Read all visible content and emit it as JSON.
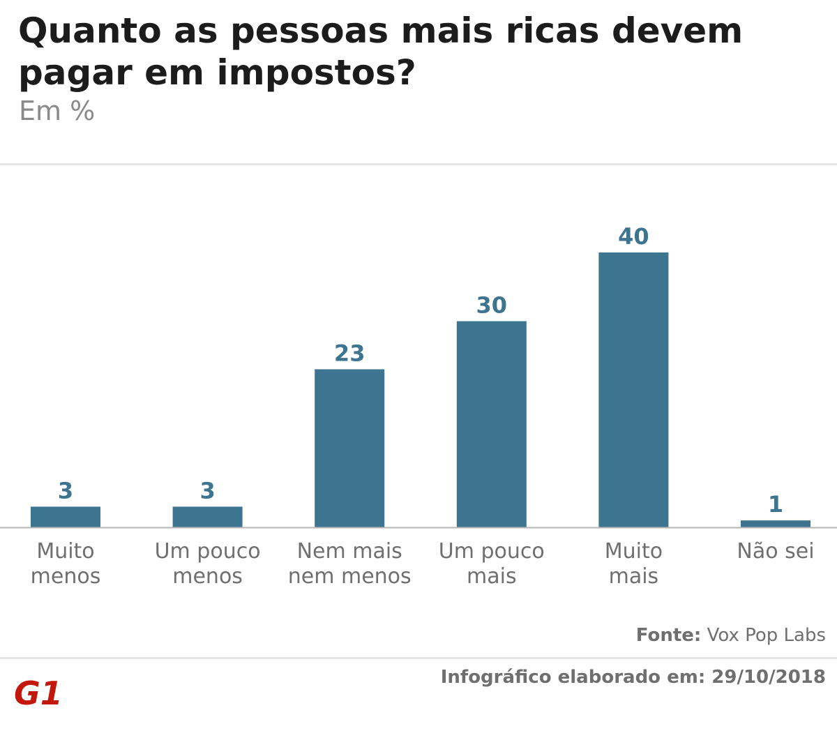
{
  "header": {
    "title": "Quanto as pessoas mais ricas devem pagar em impostos?",
    "subtitle": "Em %"
  },
  "chart_data": {
    "type": "bar",
    "categories": [
      [
        "Muito",
        "menos"
      ],
      [
        "Um pouco",
        "menos"
      ],
      [
        "Nem mais",
        "nem menos"
      ],
      [
        "Um pouco",
        "mais"
      ],
      [
        "Muito",
        "mais"
      ],
      [
        "Não sei"
      ]
    ],
    "values": [
      3,
      3,
      23,
      30,
      40,
      1
    ],
    "ylim": [
      0,
      40
    ],
    "grid": false,
    "bar_color": "#3d7490",
    "label_color": "#3d7490",
    "axis_color": "#b5b5b5",
    "category_color": "#6f6f6f"
  },
  "footer": {
    "source_label": "Fonte:",
    "source_value": "Vox Pop Labs",
    "credit": "Infográfico elaborado em: 29/10/2018",
    "logo_text": "G1",
    "logo_color": "#c4170c"
  }
}
